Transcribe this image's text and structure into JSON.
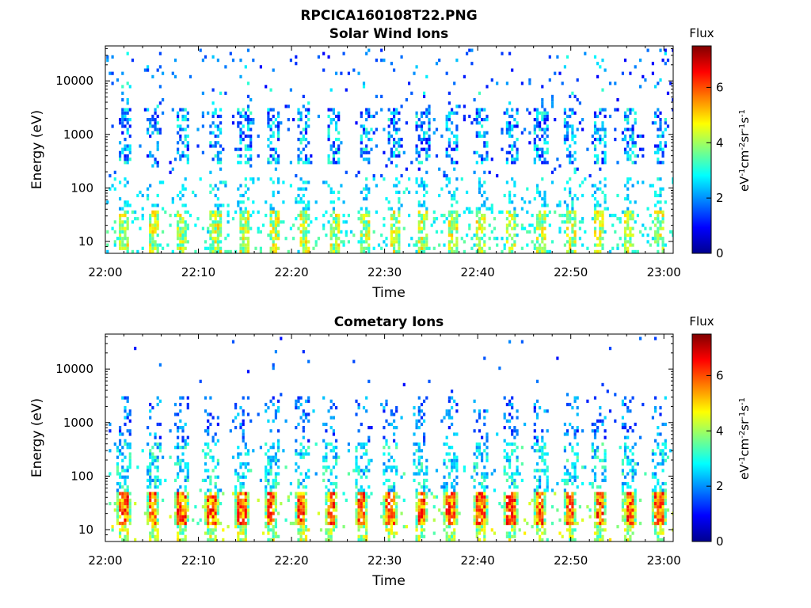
{
  "page": {
    "title": "RPCICA160108T22.PNG"
  },
  "chart_data": [
    {
      "type": "heatmap",
      "title": "Solar Wind Ions",
      "xlabel": "Time",
      "ylabel": "Energy (eV)",
      "xlim": [
        "22:00",
        "23:01"
      ],
      "ylim": [
        6,
        45000
      ],
      "yscale": "log",
      "x_ticks": [
        "22:00",
        "22:10",
        "22:20",
        "22:30",
        "22:40",
        "22:50",
        "23:00"
      ],
      "y_ticks": [
        "10",
        "100",
        "1000",
        "10000"
      ],
      "colorbar": {
        "label": "Flux",
        "unit": "eV-1cm-2sr-1s-1",
        "range": [
          0,
          7.5
        ],
        "ticks": [
          "0",
          "2",
          "4",
          "6"
        ]
      },
      "pulses_min": [
        1.9,
        5.0,
        8.1,
        11.7,
        14.8,
        18.0,
        21.2,
        24.5,
        27.8,
        30.9,
        34.0,
        37.2,
        40.3,
        43.5,
        46.7,
        49.8,
        53.0,
        56.2,
        59.4
      ],
      "intensity": {
        "sparse_high_energy": "1-3",
        "low_energy_bands": "2.5-5"
      }
    },
    {
      "type": "heatmap",
      "title": "Cometary Ions",
      "xlabel": "Time",
      "ylabel": "Energy (eV)",
      "xlim": [
        "22:00",
        "23:01"
      ],
      "ylim": [
        6,
        45000
      ],
      "yscale": "log",
      "x_ticks": [
        "22:00",
        "22:10",
        "22:20",
        "22:30",
        "22:40",
        "22:50",
        "23:00"
      ],
      "y_ticks": [
        "10",
        "100",
        "1000",
        "10000"
      ],
      "colorbar": {
        "label": "Flux",
        "unit": "eV-1cm-2sr-1s-1",
        "range": [
          0,
          7.5
        ],
        "ticks": [
          "0",
          "2",
          "4",
          "6"
        ]
      },
      "pulses_min": [
        1.9,
        5.0,
        8.1,
        11.3,
        14.5,
        17.7,
        20.9,
        24.1,
        27.4,
        30.5,
        33.8,
        37.0,
        40.2,
        43.4,
        46.6,
        49.8,
        53.0,
        56.2,
        59.4
      ],
      "intensity": {
        "core_10_to_40eV": "4.5-6.8",
        "tail_above_100eV": "1-3"
      }
    }
  ]
}
